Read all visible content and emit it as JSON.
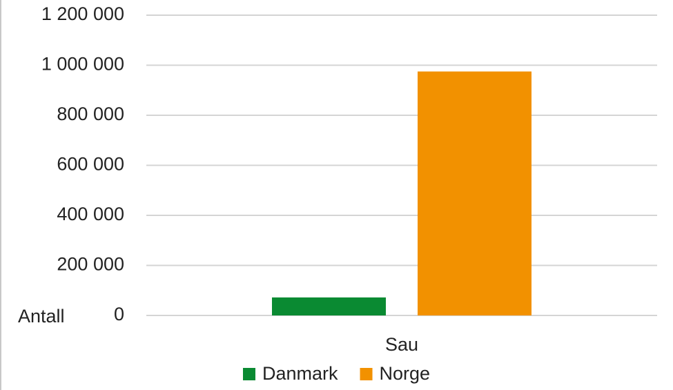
{
  "chart_data": {
    "type": "bar",
    "y_label": "Antall",
    "categories": [
      "Sau"
    ],
    "series": [
      {
        "name": "Danmark",
        "color": "#0a8a32",
        "values": [
          72000
        ]
      },
      {
        "name": "Norge",
        "color": "#f29100",
        "values": [
          975000
        ]
      }
    ],
    "ylim": [
      0,
      1200000
    ],
    "yticks": [
      0,
      {
        "value": 200000,
        "label": "200 000"
      },
      {
        "value": 400000,
        "label": "400 000"
      },
      {
        "value": 600000,
        "label": "600 000"
      },
      {
        "value": 800000,
        "label": "800 000"
      },
      {
        "value": 1000000,
        "label": "1 000 000"
      },
      {
        "value": 1200000,
        "label": "1 200 000"
      }
    ],
    "grid": true,
    "legend": "bottom"
  }
}
